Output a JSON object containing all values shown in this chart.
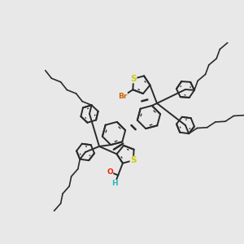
{
  "bg_color": "#e8e8e8",
  "bond_color": "#2a2a2a",
  "bond_lw": 1.4,
  "S_color": "#cccc00",
  "Br_color": "#cc6600",
  "O_color": "#ee2200",
  "H_color": "#22bbbb",
  "figsize": [
    3.0,
    3.0
  ],
  "dpi": 100,
  "xlim": [
    -3.8,
    3.8
  ],
  "ylim": [
    -3.8,
    3.8
  ]
}
